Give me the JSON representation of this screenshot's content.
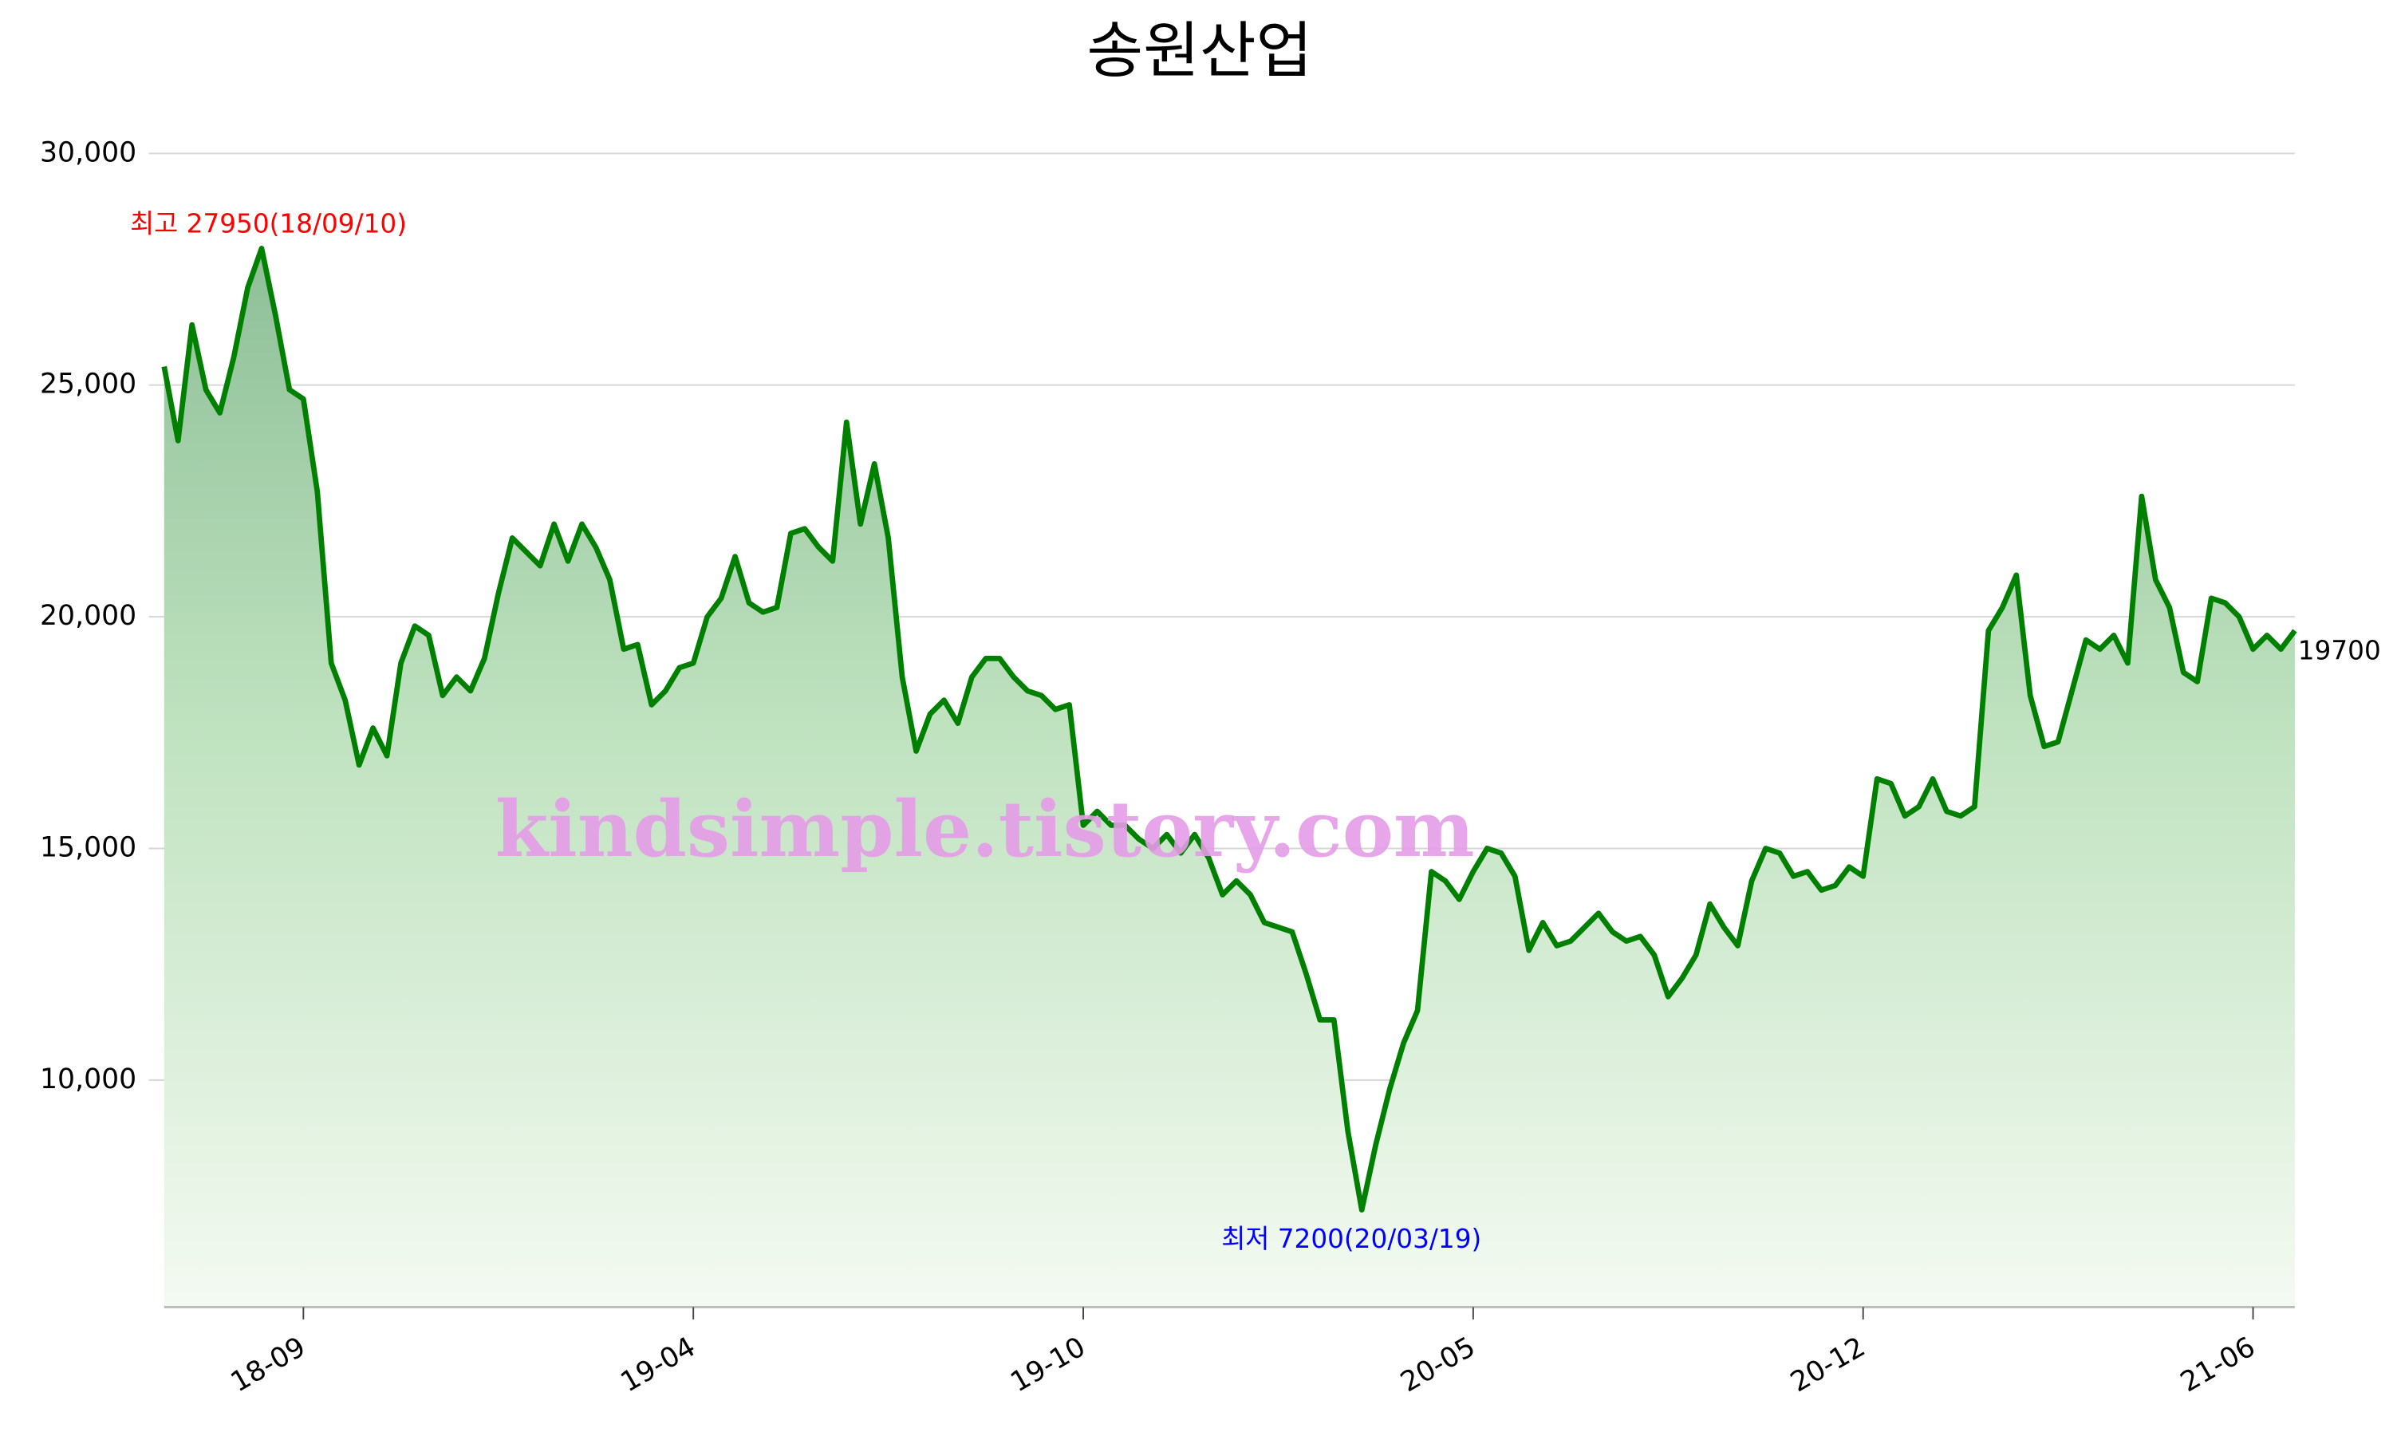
{
  "chart_data": {
    "type": "line",
    "title": "송원산업",
    "watermark": "kindsimple.tistory.com",
    "categories": [
      null,
      null,
      null,
      null,
      null,
      null,
      null,
      null,
      null,
      null,
      "18-09",
      null,
      null,
      null,
      null,
      null,
      null,
      null,
      null,
      null,
      null,
      null,
      null,
      null,
      null,
      null,
      null,
      null,
      null,
      null,
      null,
      null,
      null,
      null,
      null,
      null,
      null,
      null,
      "19-04",
      null,
      null,
      null,
      null,
      null,
      null,
      null,
      null,
      null,
      null,
      null,
      null,
      null,
      null,
      null,
      null,
      null,
      null,
      null,
      null,
      null,
      null,
      null,
      null,
      null,
      null,
      null,
      "19-10",
      null,
      null,
      null,
      null,
      null,
      null,
      null,
      null,
      null,
      null,
      null,
      null,
      null,
      null,
      null,
      null,
      null,
      null,
      null,
      null,
      null,
      null,
      null,
      null,
      null,
      null,
      null,
      "20-05",
      null,
      null,
      null,
      null,
      null,
      null,
      null,
      null,
      null,
      null,
      null,
      null,
      null,
      null,
      null,
      null,
      null,
      null,
      null,
      null,
      null,
      null,
      null,
      null,
      null,
      null,
      null,
      "20-12",
      null,
      null,
      null,
      null,
      null,
      null,
      null,
      null,
      null,
      null,
      null,
      null,
      null,
      null,
      null,
      null,
      null,
      null,
      null,
      null,
      null,
      null,
      null,
      null,
      null,
      null,
      null,
      "21-06",
      null,
      null,
      null
    ],
    "series": [
      {
        "color": "#008000",
        "values": [
          25400,
          23800,
          26300,
          24900,
          24400,
          25600,
          27100,
          27950,
          26500,
          24900,
          24700,
          22700,
          19000,
          18200,
          16800,
          17600,
          17000,
          19000,
          19800,
          19600,
          18300,
          18700,
          18400,
          19100,
          20500,
          21700,
          21400,
          21100,
          22000,
          21200,
          22000,
          21500,
          20800,
          19300,
          19400,
          18100,
          18400,
          18900,
          19000,
          20000,
          20400,
          21300,
          20300,
          20100,
          20200,
          21800,
          21900,
          21500,
          21200,
          24200,
          22000,
          23300,
          21700,
          18700,
          17100,
          17900,
          18200,
          17700,
          18700,
          19100,
          19100,
          18700,
          18400,
          18300,
          18000,
          18100,
          15500,
          15800,
          15500,
          15500,
          15200,
          15000,
          15300,
          14900,
          15300,
          14800,
          14000,
          14300,
          14000,
          13400,
          13300,
          13200,
          12300,
          11300,
          11300,
          8900,
          7200,
          8600,
          9800,
          10800,
          11500,
          14500,
          14300,
          13900,
          14500,
          15000,
          14900,
          14400,
          12800,
          13400,
          12900,
          13000,
          13300,
          13600,
          13200,
          13000,
          13100,
          12700,
          11800,
          12200,
          12700,
          13800,
          13300,
          12900,
          14300,
          15000,
          14900,
          14400,
          14500,
          14100,
          14200,
          14600,
          14400,
          16500,
          16400,
          15700,
          15900,
          16500,
          15800,
          15700,
          15900,
          19700,
          20200,
          20900,
          18300,
          17200,
          17300,
          18400,
          19500,
          19300,
          19600,
          19000,
          22600,
          20800,
          20200,
          18800,
          18600,
          20400,
          20300,
          20000,
          19300,
          19600,
          19300,
          19700
        ]
      }
    ],
    "ylim": [
      5100,
      30000
    ],
    "yticks": [
      {
        "value": 10000,
        "label": "10,000"
      },
      {
        "value": 15000,
        "label": "15,000"
      },
      {
        "value": 20000,
        "label": "20,000"
      },
      {
        "value": 25000,
        "label": "25,000"
      },
      {
        "value": 30000,
        "label": "30,000"
      }
    ],
    "grid": true,
    "annotations": [
      {
        "text": "최고 27950(18/09/10)",
        "color": "#ff0000",
        "index": 7,
        "value": 27950
      },
      {
        "text": "최저 7200(20/03/19)",
        "color": "#0000ff",
        "index": 86,
        "value": 7200
      },
      {
        "text": "19700",
        "color": "#000000",
        "index": 153,
        "value": 19700
      }
    ]
  }
}
